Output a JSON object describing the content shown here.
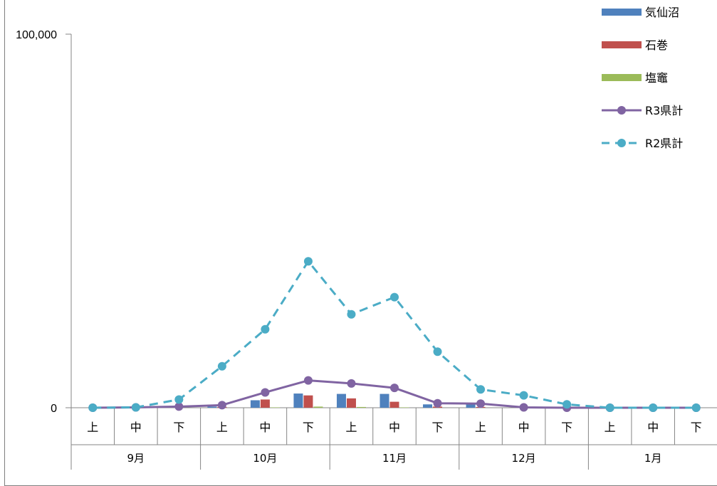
{
  "chart_data": {
    "type": "bar+line",
    "title": "",
    "ylim": [
      0,
      100000
    ],
    "y_ticks": [
      "0",
      "100,000"
    ],
    "categories": [
      "上",
      "中",
      "下",
      "上",
      "中",
      "下",
      "上",
      "中",
      "下",
      "上",
      "中",
      "下",
      "上",
      "中",
      "下"
    ],
    "groups": [
      {
        "label": "9月",
        "span": 3
      },
      {
        "label": "10月",
        "span": 3
      },
      {
        "label": "11月",
        "span": 3
      },
      {
        "label": "12月",
        "span": 3
      },
      {
        "label": "1月",
        "span": 3
      }
    ],
    "series": [
      {
        "name": "気仙沼",
        "kind": "bar",
        "color": "#4f81bd",
        "values": [
          0,
          0,
          0,
          300,
          2000,
          3800,
          3700,
          3700,
          900,
          1200,
          0,
          0,
          0,
          0,
          0
        ]
      },
      {
        "name": "石巻",
        "kind": "bar",
        "color": "#c0504d",
        "values": [
          0,
          0,
          0,
          200,
          2200,
          3300,
          2500,
          1600,
          300,
          200,
          0,
          0,
          0,
          0,
          0
        ]
      },
      {
        "name": "塩竈",
        "kind": "bar",
        "color": "#9bbb59",
        "values": [
          0,
          0,
          0,
          0,
          100,
          300,
          200,
          100,
          0,
          0,
          0,
          0,
          0,
          0,
          0
        ]
      },
      {
        "name": "R3県計",
        "kind": "line",
        "style": "solid",
        "color": "#8064a2",
        "values": [
          0,
          100,
          300,
          700,
          4100,
          7300,
          6500,
          5300,
          1200,
          1100,
          100,
          0,
          0,
          0,
          0
        ]
      },
      {
        "name": "R2県計",
        "kind": "line",
        "style": "dashed",
        "color": "#4bacc6",
        "values": [
          0,
          100,
          2200,
          11100,
          21000,
          39200,
          25000,
          29600,
          15000,
          4900,
          3300,
          900,
          0,
          0,
          0
        ]
      }
    ],
    "legend": "top-right",
    "grid": false
  }
}
